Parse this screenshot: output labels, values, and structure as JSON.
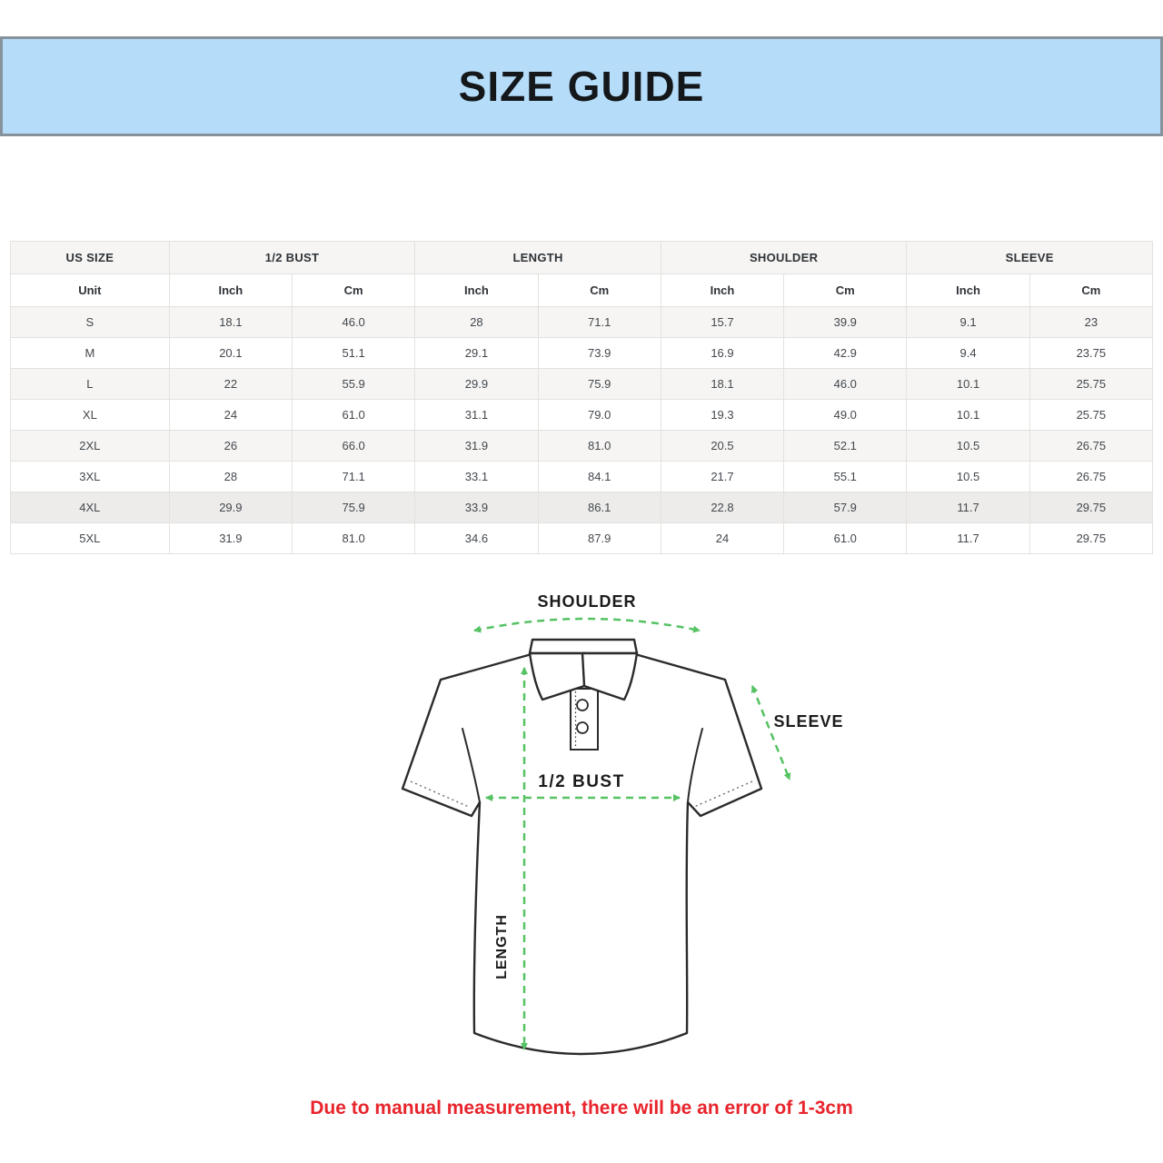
{
  "banner": {
    "title": "SIZE GUIDE",
    "bg_color": "#b5ddfa"
  },
  "size_table": {
    "column_groups": [
      "US SIZE",
      "1/2 BUST",
      "LENGTH",
      "SHOULDER",
      "SLEEVE"
    ],
    "unit_row": [
      "Unit",
      "Inch",
      "Cm",
      "Inch",
      "Cm",
      "Inch",
      "Cm",
      "Inch",
      "Cm"
    ],
    "rows": [
      [
        "S",
        "18.1",
        "46.0",
        "28",
        "71.1",
        "15.7",
        "39.9",
        "9.1",
        "23"
      ],
      [
        "M",
        "20.1",
        "51.1",
        "29.1",
        "73.9",
        "16.9",
        "42.9",
        "9.4",
        "23.75"
      ],
      [
        "L",
        "22",
        "55.9",
        "29.9",
        "75.9",
        "18.1",
        "46.0",
        "10.1",
        "25.75"
      ],
      [
        "XL",
        "24",
        "61.0",
        "31.1",
        "79.0",
        "19.3",
        "49.0",
        "10.1",
        "25.75"
      ],
      [
        "2XL",
        "26",
        "66.0",
        "31.9",
        "81.0",
        "20.5",
        "52.1",
        "10.5",
        "26.75"
      ],
      [
        "3XL",
        "28",
        "71.1",
        "33.1",
        "84.1",
        "21.7",
        "55.1",
        "10.5",
        "26.75"
      ],
      [
        "4XL",
        "29.9",
        "75.9",
        "33.9",
        "86.1",
        "22.8",
        "57.9",
        "11.7",
        "29.75"
      ],
      [
        "5XL",
        "31.9",
        "81.0",
        "34.6",
        "87.9",
        "24",
        "61.0",
        "11.7",
        "29.75"
      ]
    ]
  },
  "diagram": {
    "shoulder_label": "SHOULDER",
    "sleeve_label": "SLEEVE",
    "half_bust_label": "1/2 BUST",
    "length_label": "LENGTH",
    "arrow_color": "#56c263",
    "outline_color": "#2b2b2b"
  },
  "note": {
    "text": "Due to manual measurement, there will be an error of 1-3cm",
    "color": "#e8242c"
  }
}
